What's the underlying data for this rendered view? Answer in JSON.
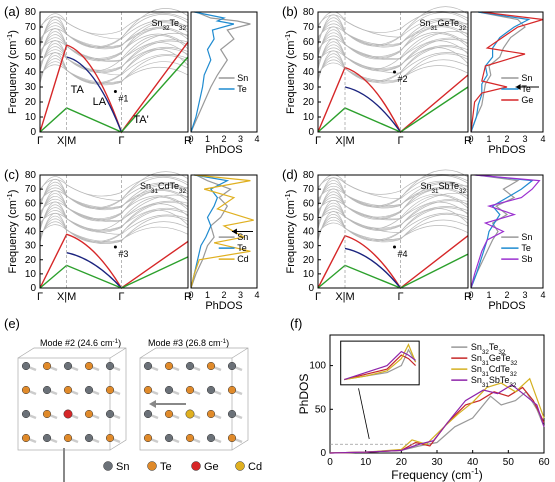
{
  "figure": {
    "panels": [
      {
        "id": "a",
        "label": "(a)",
        "title_main": "Sn",
        "title_sub1": "32",
        "title_main2": "Te",
        "title_sub2": "32",
        "ylabel": "Frequency (cm",
        "ylabel_sup": "-1",
        "ylabel_end": ")",
        "yticks": [
          "0",
          "10",
          "20",
          "30",
          "40",
          "50",
          "60",
          "70",
          "80"
        ],
        "xticks": [
          "Γ",
          "X|M",
          "Γ",
          "R"
        ],
        "dos_xlabel": "PhDOS",
        "dos_xticks": [
          "0",
          "1",
          "2",
          "3",
          "4"
        ],
        "legend": [
          "Sn",
          "Te"
        ],
        "annotations": [
          "TA",
          "LA",
          "TA'",
          "#1"
        ]
      },
      {
        "id": "b",
        "label": "(b)",
        "title_main": "Sn",
        "title_sub1": "31",
        "title_main2": "GeTe",
        "title_sub2": "32",
        "ylabel": "Frequency (cm",
        "ylabel_sup": "-1",
        "ylabel_end": ")",
        "yticks": [
          "0",
          "10",
          "20",
          "30",
          "40",
          "50",
          "60",
          "70",
          "80"
        ],
        "xticks": [
          "Γ",
          "X|M",
          "Γ",
          "R"
        ],
        "dos_xlabel": "PhDOS",
        "dos_xticks": [
          "0",
          "1",
          "2",
          "3",
          "4"
        ],
        "legend": [
          "Sn",
          "Te",
          "Ge"
        ],
        "annotations": [
          "#2"
        ]
      },
      {
        "id": "c",
        "label": "(c)",
        "title_main": "Sn",
        "title_sub1": "31",
        "title_main2": "CdTe",
        "title_sub2": "32",
        "ylabel": "Frequency (cm",
        "ylabel_sup": "-1",
        "ylabel_end": ")",
        "yticks": [
          "0",
          "10",
          "20",
          "30",
          "40",
          "50",
          "60",
          "70",
          "80"
        ],
        "xticks": [
          "Γ",
          "X|M",
          "Γ",
          "R"
        ],
        "dos_xlabel": "PhDOS",
        "dos_xticks": [
          "0",
          "1",
          "2",
          "3",
          "4"
        ],
        "legend": [
          "Sn",
          "Te",
          "Cd"
        ],
        "annotations": [
          "#3"
        ]
      },
      {
        "id": "d",
        "label": "(d)",
        "title_main": "Sn",
        "title_sub1": "31",
        "title_main2": "SbTe",
        "title_sub2": "32",
        "ylabel": "Frequency (cm",
        "ylabel_sup": "-1",
        "ylabel_end": ")",
        "yticks": [
          "0",
          "10",
          "20",
          "30",
          "40",
          "50",
          "60",
          "70",
          "80"
        ],
        "xticks": [
          "Γ",
          "X|M",
          "Γ",
          "R"
        ],
        "dos_xlabel": "PhDOS",
        "dos_xticks": [
          "0",
          "1",
          "2",
          "3",
          "4"
        ],
        "legend": [
          "Sn",
          "Te",
          "Sb"
        ],
        "annotations": [
          "#4"
        ]
      }
    ],
    "panel_e": {
      "label": "(e)",
      "mode2": "Mode #2 (24.6 cm",
      "mode3": "Mode #3 (26.8 cm",
      "sup": "-1",
      "close": ")",
      "legend": [
        "Sn",
        "Te",
        "Ge",
        "Cd"
      ]
    },
    "panel_f": {
      "label": "(f)",
      "ylabel": "PhDOS",
      "xlabel": "Frequency (cm",
      "xlabel_sup": "-1",
      "xlabel_end": ")",
      "yticks": [
        "0",
        "50",
        "100"
      ],
      "xticks": [
        "0",
        "10",
        "20",
        "30",
        "40",
        "50",
        "60"
      ],
      "legend": [
        {
          "a": "Sn",
          "s1": "32",
          "b": "Te",
          "s2": "32"
        },
        {
          "a": "Sn",
          "s1": "31",
          "b": "GeTe",
          "s2": "32"
        },
        {
          "a": "Sn",
          "s1": "31",
          "b": "CdTe",
          "s2": "32"
        },
        {
          "a": "Sn",
          "s1": "31",
          "b": "SbTe",
          "s2": "32"
        }
      ]
    },
    "colors": {
      "red": "#d62728",
      "green": "#2ca02c",
      "navy": "#1a237e",
      "gray": "#b8b8b8",
      "Sn": "#999999",
      "Te": "#1f8bd0",
      "Ge": "#d62728",
      "Cd": "#e0b020",
      "Sb": "#9b30d0",
      "sn32": "#999999",
      "ge": "#c62828",
      "cd": "#d4b020",
      "sb": "#8e24aa"
    }
  }
}
